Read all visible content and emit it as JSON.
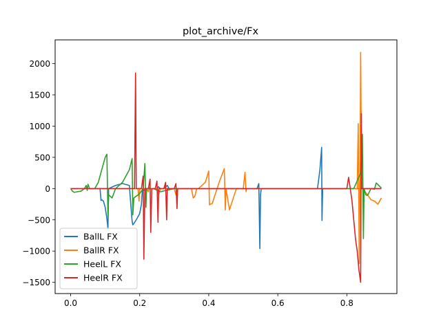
{
  "chart_data": {
    "type": "line",
    "title": "plot_archive/Fx",
    "xlabel": "",
    "ylabel": "",
    "xlim": [
      -0.045,
      0.945
    ],
    "ylim": [
      -1680,
      2380
    ],
    "x_ticks": [
      0.0,
      0.2,
      0.4,
      0.6,
      0.8
    ],
    "x_tick_labels": [
      "0.0",
      "0.2",
      "0.4",
      "0.6",
      "0.8"
    ],
    "y_ticks": [
      -1500,
      -1000,
      -500,
      0,
      500,
      1000,
      1500,
      2000
    ],
    "y_tick_labels": [
      "−1500",
      "−1000",
      "−500",
      "0",
      "500",
      "1000",
      "1500",
      "2000"
    ],
    "grid": false,
    "legend": "lower-left",
    "series": [
      {
        "name": "BallL FX",
        "color": "#1f77b4",
        "x": [
          0.0,
          0.08,
          0.085,
          0.088,
          0.09,
          0.095,
          0.1,
          0.105,
          0.108,
          0.11,
          0.13,
          0.15,
          0.17,
          0.178,
          0.18,
          0.183,
          0.19,
          0.2,
          0.205,
          0.208,
          0.21,
          0.215,
          0.22,
          0.222,
          0.24,
          0.25,
          0.254,
          0.26,
          0.27,
          0.28,
          0.285,
          0.3,
          0.54,
          0.545,
          0.548,
          0.55,
          0.552,
          0.7,
          0.715,
          0.722,
          0.727,
          0.728,
          0.73,
          0.9
        ],
        "y": [
          0,
          0,
          0,
          -190,
          -180,
          -200,
          -300,
          -480,
          -640,
          0,
          50,
          80,
          50,
          -520,
          -580,
          -560,
          -500,
          -400,
          -250,
          0,
          -30,
          -20,
          0,
          0,
          0,
          0,
          30,
          0,
          0,
          50,
          0,
          0,
          0,
          80,
          -960,
          -100,
          0,
          0,
          0,
          300,
          660,
          -510,
          0,
          0
        ]
      },
      {
        "name": "BallR FX",
        "color": "#ff7f0e",
        "x": [
          0.0,
          0.19,
          0.195,
          0.198,
          0.2,
          0.215,
          0.22,
          0.225,
          0.228,
          0.23,
          0.245,
          0.25,
          0.255,
          0.26,
          0.275,
          0.28,
          0.285,
          0.29,
          0.3,
          0.305,
          0.31,
          0.32,
          0.35,
          0.355,
          0.36,
          0.365,
          0.37,
          0.39,
          0.4,
          0.402,
          0.405,
          0.41,
          0.43,
          0.445,
          0.448,
          0.45,
          0.46,
          0.48,
          0.5,
          0.505,
          0.508,
          0.51,
          0.54,
          0.83,
          0.833,
          0.836,
          0.838,
          0.84,
          0.843,
          0.846,
          0.86,
          0.87,
          0.88,
          0.89,
          0.9
        ],
        "y": [
          0,
          0,
          0,
          -200,
          0,
          0,
          0,
          -50,
          20,
          0,
          0,
          0,
          -100,
          0,
          0,
          0,
          -20,
          0,
          0,
          -100,
          0,
          0,
          0,
          -150,
          -120,
          0,
          0,
          100,
          280,
          -260,
          -250,
          -240,
          100,
          320,
          -340,
          0,
          -340,
          0,
          0,
          260,
          -50,
          0,
          0,
          0,
          1040,
          -1200,
          0,
          2180,
          0,
          0,
          -100,
          -180,
          -200,
          -250,
          -150
        ]
      },
      {
        "name": "HeelL FX",
        "color": "#2ca02c",
        "x": [
          0.0,
          0.005,
          0.01,
          0.02,
          0.03,
          0.04,
          0.045,
          0.048,
          0.05,
          0.055,
          0.06,
          0.065,
          0.07,
          0.08,
          0.09,
          0.1,
          0.105,
          0.108,
          0.11,
          0.12,
          0.13,
          0.15,
          0.17,
          0.178,
          0.18,
          0.183,
          0.2,
          0.21,
          0.215,
          0.218,
          0.22,
          0.222,
          0.23,
          0.24,
          0.26,
          0.3,
          0.35,
          0.38,
          0.4,
          0.5,
          0.8,
          0.82,
          0.84,
          0.845,
          0.848,
          0.85,
          0.855,
          0.86,
          0.87,
          0.88,
          0.885,
          0.9
        ],
        "y": [
          0,
          -40,
          -60,
          -50,
          -40,
          0,
          50,
          -30,
          70,
          0,
          0,
          0,
          0,
          100,
          300,
          500,
          550,
          -450,
          -100,
          -150,
          0,
          100,
          300,
          480,
          -420,
          -150,
          -80,
          0,
          400,
          -300,
          0,
          0,
          0,
          0,
          -50,
          0,
          0,
          0,
          0,
          0,
          0,
          0,
          250,
          870,
          -800,
          0,
          -100,
          -110,
          0,
          -10,
          90,
          10
        ]
      },
      {
        "name": "HeelR FX",
        "color": "#d62728",
        "x": [
          0.0,
          0.18,
          0.185,
          0.188,
          0.19,
          0.2,
          0.205,
          0.21,
          0.212,
          0.215,
          0.225,
          0.23,
          0.232,
          0.235,
          0.245,
          0.25,
          0.253,
          0.255,
          0.27,
          0.275,
          0.278,
          0.28,
          0.29,
          0.3,
          0.305,
          0.308,
          0.31,
          0.8,
          0.805,
          0.81,
          0.815,
          0.82,
          0.825,
          0.83,
          0.835,
          0.84,
          0.842,
          0.843,
          0.848,
          0.85,
          0.9
        ],
        "y": [
          0,
          0,
          0,
          1850,
          0,
          0,
          0,
          200,
          -1130,
          0,
          0,
          150,
          -700,
          0,
          0,
          120,
          -540,
          0,
          0,
          100,
          -500,
          0,
          0,
          0,
          80,
          -320,
          0,
          0,
          180,
          0,
          -200,
          -500,
          -800,
          -1000,
          -1300,
          -1500,
          1200,
          0,
          0,
          0,
          0
        ]
      }
    ]
  }
}
